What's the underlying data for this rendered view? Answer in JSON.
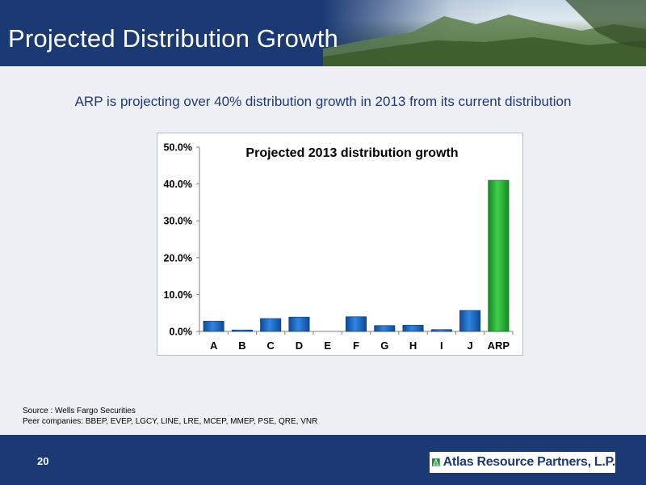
{
  "header": {
    "title": "Projected Distribution Growth"
  },
  "subtitle": "ARP is projecting over 40% distribution growth in 2013 from its current distribution",
  "chart_data": {
    "type": "bar",
    "title": "Projected 2013 distribution growth",
    "categories": [
      "A",
      "B",
      "C",
      "D",
      "E",
      "F",
      "G",
      "H",
      "I",
      "J",
      "ARP"
    ],
    "values": [
      2.8,
      0.4,
      3.5,
      3.9,
      0.0,
      4.0,
      1.6,
      1.7,
      0.5,
      5.7,
      41.0
    ],
    "highlight": "ARP",
    "colors": {
      "peer": "#1f6fc9",
      "highlight": "#2bb03a"
    },
    "ylim": [
      0,
      50
    ],
    "yticks": [
      "0.0%",
      "10.0%",
      "20.0%",
      "30.0%",
      "40.0%",
      "50.0%"
    ],
    "grid": false
  },
  "notes": {
    "source": "Source : Wells Fargo Securities",
    "peers": "Peer companies: BBEP, EVEP, LGCY, LINE, LRE, MCEP, MMEP, PSE, QRE, VNR"
  },
  "footer": {
    "page_number": "20",
    "company": "Atlas Resource Partners, L.P."
  }
}
